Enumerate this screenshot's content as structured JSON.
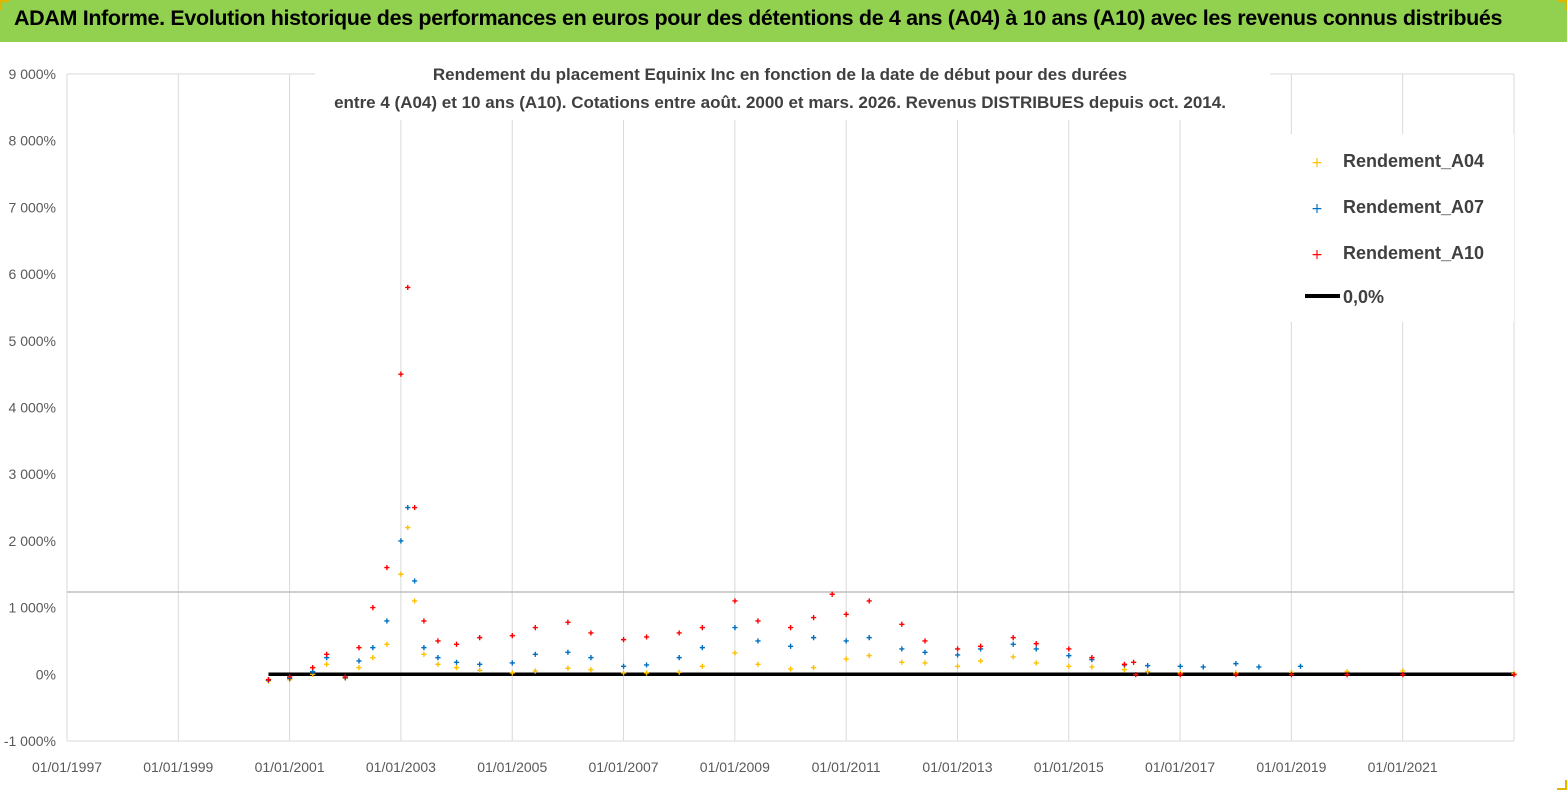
{
  "banner": {
    "title": "ADAM Informe. Evolution historique des performances en euros pour des détentions de 4 ans (A04) à 10 ans (A10) avec les revenus connus distribués"
  },
  "colors": {
    "banner": "#92d050",
    "a04": "#ffc000",
    "a07": "#0070c0",
    "a10": "#ff0000",
    "zero": "#000000",
    "grid": "#d9d9d9"
  },
  "chart_data": {
    "type": "scatter",
    "title_lines": [
      "Rendement du placement Equinix Inc en fonction de la date de début pour des durées",
      "entre 4 (A04) et 10 ans (A10).  Cotations entre août. 2000 et mars. 2026.  Revenus DISTRIBUES depuis oct. 2014."
    ],
    "xlabel": "",
    "ylabel": "",
    "ylim": [
      -1000,
      9000
    ],
    "xlim": [
      "1997-01-01",
      "2022-12-31"
    ],
    "y_ticks": [
      "-1 000%",
      "0%",
      "1 000%",
      "2 000%",
      "3 000%",
      "4 000%",
      "5 000%",
      "6 000%",
      "7 000%",
      "8 000%",
      "9 000%"
    ],
    "x_ticks": [
      "01/01/1997",
      "01/01/1999",
      "01/01/2001",
      "01/01/2003",
      "01/01/2005",
      "01/01/2007",
      "01/01/2009",
      "01/01/2011",
      "01/01/2013",
      "01/01/2015",
      "01/01/2017",
      "01/01/2019",
      "01/01/2021"
    ],
    "grid": "vertical",
    "legend_position": "top-right",
    "legend": [
      "Rendement_A04",
      "Rendement_A07",
      "Rendement_A10",
      "0,0%"
    ],
    "series": [
      {
        "name": "Rendement_A04",
        "marker": "+",
        "x": [
          "2000-08-15",
          "2001-01-01",
          "2001-06-01",
          "2001-09-01",
          "2002-01-01",
          "2002-04-01",
          "2002-07-01",
          "2002-10-01",
          "2003-01-01",
          "2003-02-15",
          "2003-04-01",
          "2003-06-01",
          "2003-09-01",
          "2004-01-01",
          "2004-06-01",
          "2005-01-01",
          "2005-06-01",
          "2006-01-01",
          "2006-06-01",
          "2007-01-01",
          "2007-06-01",
          "2008-01-01",
          "2008-06-01",
          "2009-01-01",
          "2009-06-01",
          "2010-01-01",
          "2010-06-01",
          "2011-01-01",
          "2011-06-01",
          "2012-01-01",
          "2012-06-01",
          "2013-01-01",
          "2013-06-01",
          "2014-01-01",
          "2014-06-01",
          "2015-01-01",
          "2015-06-01",
          "2016-01-01",
          "2016-06-01",
          "2017-01-01",
          "2018-01-01",
          "2019-01-01",
          "2020-01-01",
          "2021-01-01",
          "2022-12-31"
        ],
        "y": [
          -100,
          -80,
          0,
          150,
          -60,
          100,
          250,
          450,
          1500,
          2200,
          1100,
          300,
          150,
          100,
          60,
          20,
          50,
          90,
          70,
          20,
          20,
          30,
          120,
          320,
          150,
          80,
          100,
          230,
          280,
          180,
          170,
          120,
          200,
          260,
          170,
          120,
          110,
          70,
          40,
          20,
          20,
          30,
          40,
          50,
          10
        ]
      },
      {
        "name": "Rendement_A07",
        "marker": "+",
        "x": [
          "2000-08-15",
          "2001-01-01",
          "2001-06-01",
          "2001-09-01",
          "2002-01-01",
          "2002-04-01",
          "2002-07-01",
          "2002-10-01",
          "2003-01-01",
          "2003-02-15",
          "2003-04-01",
          "2003-06-01",
          "2003-09-01",
          "2004-01-01",
          "2004-06-01",
          "2005-01-01",
          "2005-06-01",
          "2006-01-01",
          "2006-06-01",
          "2007-01-01",
          "2007-06-01",
          "2008-01-01",
          "2008-06-01",
          "2009-01-01",
          "2009-06-01",
          "2010-01-01",
          "2010-06-01",
          "2011-01-01",
          "2011-06-01",
          "2012-01-01",
          "2012-06-01",
          "2013-01-01",
          "2013-06-01",
          "2014-01-01",
          "2014-06-01",
          "2015-01-01",
          "2015-06-01",
          "2016-01-01",
          "2016-06-01",
          "2017-01-01",
          "2017-06-01",
          "2018-01-01",
          "2018-06-01",
          "2019-03-01"
        ],
        "y": [
          -90,
          -60,
          40,
          250,
          -50,
          200,
          400,
          800,
          2000,
          2500,
          1400,
          400,
          250,
          180,
          150,
          170,
          300,
          330,
          250,
          120,
          140,
          250,
          400,
          700,
          500,
          420,
          550,
          500,
          550,
          380,
          330,
          290,
          380,
          450,
          380,
          280,
          220,
          140,
          130,
          120,
          110,
          160,
          110,
          120
        ]
      },
      {
        "name": "Rendement_A10",
        "marker": "+",
        "x": [
          "2000-08-15",
          "2001-01-01",
          "2001-06-01",
          "2001-09-01",
          "2002-01-01",
          "2002-04-01",
          "2002-07-01",
          "2002-10-01",
          "2003-01-01",
          "2003-02-15",
          "2003-04-01",
          "2003-06-01",
          "2003-09-01",
          "2004-01-01",
          "2004-06-01",
          "2005-01-01",
          "2005-06-01",
          "2006-01-01",
          "2006-06-01",
          "2007-01-01",
          "2007-06-01",
          "2008-01-01",
          "2008-06-01",
          "2009-01-01",
          "2009-06-01",
          "2010-01-01",
          "2010-06-01",
          "2010-10-01",
          "2011-01-01",
          "2011-06-01",
          "2012-01-01",
          "2012-06-01",
          "2013-01-01",
          "2013-06-01",
          "2014-01-01",
          "2014-06-01",
          "2015-01-01",
          "2015-06-01",
          "2016-01-01",
          "2016-03-01",
          "2016-03-15",
          "2017-01-01",
          "2018-01-01",
          "2019-01-01",
          "2020-01-01",
          "2021-01-01",
          "2022-12-31"
        ],
        "y": [
          -80,
          -40,
          100,
          300,
          -40,
          400,
          1000,
          1600,
          4500,
          5800,
          2500,
          800,
          500,
          450,
          550,
          580,
          700,
          780,
          620,
          520,
          560,
          620,
          700,
          1100,
          800,
          700,
          850,
          1200,
          900,
          1100,
          750,
          500,
          380,
          420,
          550,
          460,
          380,
          250,
          150,
          180,
          -5,
          -5,
          -5,
          -5,
          -5,
          -5,
          -5
        ]
      },
      {
        "name": "0,0%",
        "type": "line",
        "x": [
          "2000-08-15",
          "2022-12-31"
        ],
        "y": [
          0,
          0
        ]
      }
    ]
  }
}
